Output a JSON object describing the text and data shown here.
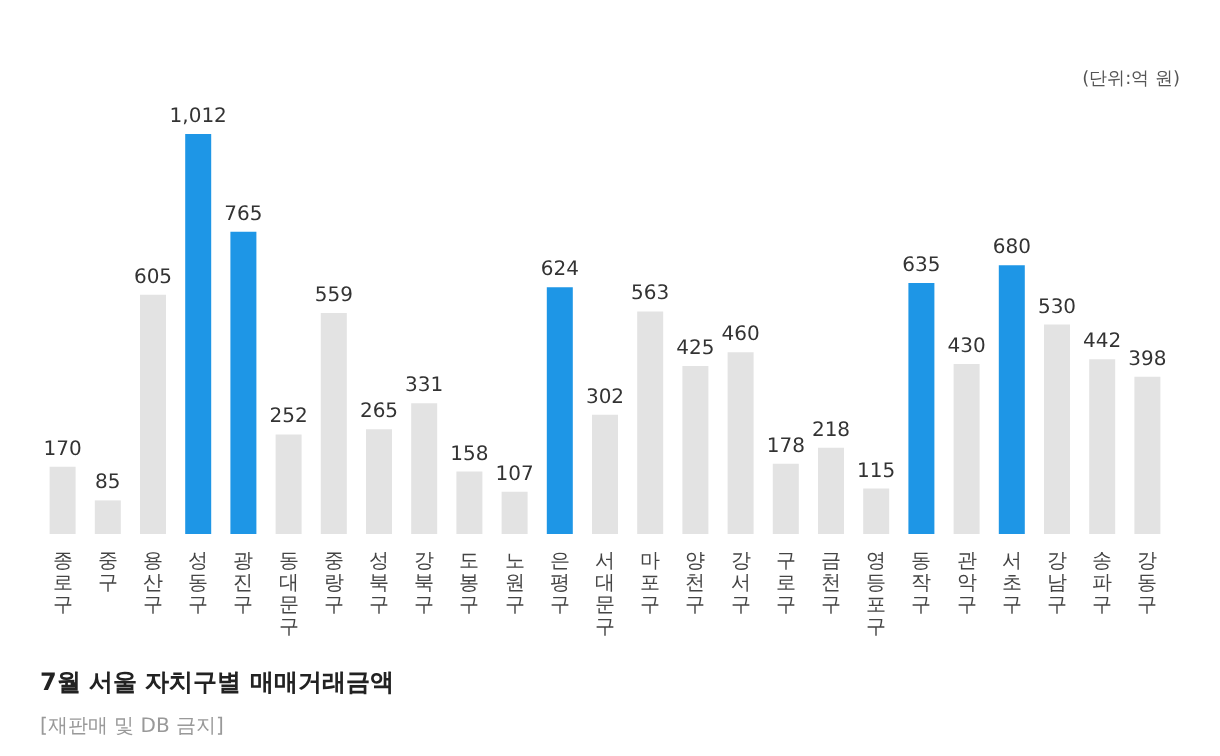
{
  "chart_data": {
    "type": "bar",
    "title": "7월 서울 자치구별 매매거래금액",
    "annotations": [
      "(단위:억 원)",
      "[재판매 및 DB 금지]"
    ],
    "categories": [
      "종로구",
      "중구",
      "용산구",
      "성동구",
      "광진구",
      "동대문구",
      "중랑구",
      "성북구",
      "강북구",
      "도봉구",
      "노원구",
      "은평구",
      "서대문구",
      "마포구",
      "양천구",
      "강서구",
      "구로구",
      "금천구",
      "영등포구",
      "동작구",
      "관악구",
      "서초구",
      "강남구",
      "송파구",
      "강동구"
    ],
    "values": [
      170,
      85,
      605,
      1012,
      765,
      252,
      559,
      265,
      331,
      158,
      107,
      624,
      302,
      563,
      425,
      460,
      178,
      218,
      115,
      635,
      430,
      680,
      530,
      442,
      398
    ],
    "colors": [
      "#e3e3e3",
      "#e3e3e3",
      "#e3e3e3",
      "#1e96e6",
      "#1e96e6",
      "#e3e3e3",
      "#e3e3e3",
      "#e3e3e3",
      "#e3e3e3",
      "#e3e3e3",
      "#e3e3e3",
      "#1e96e6",
      "#e3e3e3",
      "#e3e3e3",
      "#e3e3e3",
      "#e3e3e3",
      "#e3e3e3",
      "#e3e3e3",
      "#e3e3e3",
      "#1e96e6",
      "#e3e3e3",
      "#1e96e6",
      "#e3e3e3",
      "#e3e3e3",
      "#e3e3e3"
    ],
    "value_labels": [
      "170",
      "85",
      "605",
      "1,012",
      "765",
      "252",
      "559",
      "265",
      "331",
      "158",
      "107",
      "624",
      "302",
      "563",
      "425",
      "460",
      "178",
      "218",
      "115",
      "635",
      "430",
      "680",
      "530",
      "442",
      "398"
    ],
    "grid": false
  }
}
